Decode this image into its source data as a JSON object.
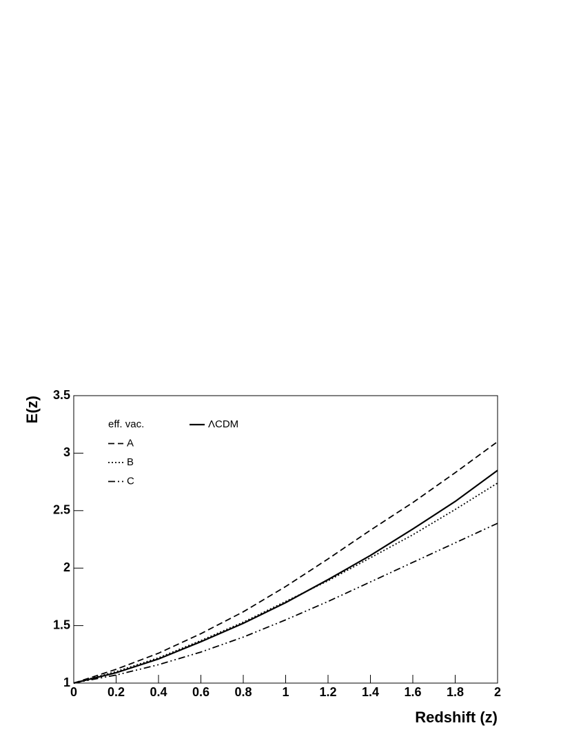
{
  "chart_data": {
    "type": "line",
    "xlabel": "Redshift (z)",
    "ylabel": "E(z)",
    "legend_title": "eff. vac.",
    "legend_position": "upper left",
    "x": [
      0,
      0.2,
      0.4,
      0.6,
      0.8,
      1.0,
      1.2,
      1.4,
      1.6,
      1.8,
      2.0
    ],
    "series": [
      {
        "name": "ΛCDM",
        "color": "#000000",
        "dash": "solid",
        "values": [
          1,
          1.09,
          1.21,
          1.36,
          1.52,
          1.7,
          1.9,
          2.11,
          2.34,
          2.58,
          2.85
        ]
      },
      {
        "name": "A",
        "color": "#000000",
        "dash": "dashed",
        "values": [
          1,
          1.12,
          1.26,
          1.43,
          1.62,
          1.84,
          2.08,
          2.33,
          2.57,
          2.83,
          3.1
        ]
      },
      {
        "name": "B",
        "color": "#000000",
        "dash": "dotted",
        "values": [
          1,
          1.1,
          1.22,
          1.37,
          1.53,
          1.71,
          1.89,
          2.09,
          2.29,
          2.51,
          2.74
        ]
      },
      {
        "name": "C",
        "color": "#000000",
        "dash": "dashdotdot",
        "values": [
          1,
          1.07,
          1.16,
          1.27,
          1.4,
          1.55,
          1.71,
          1.88,
          2.05,
          2.22,
          2.39
        ]
      }
    ],
    "xlim": [
      0,
      2
    ],
    "ylim": [
      1,
      3.5
    ],
    "xticks": [
      0,
      0.2,
      0.4,
      0.6,
      0.8,
      1,
      1.2,
      1.4,
      1.6,
      1.8,
      2
    ],
    "yticks": [
      1,
      1.5,
      2,
      2.5,
      3,
      3.5
    ],
    "grid": false
  }
}
